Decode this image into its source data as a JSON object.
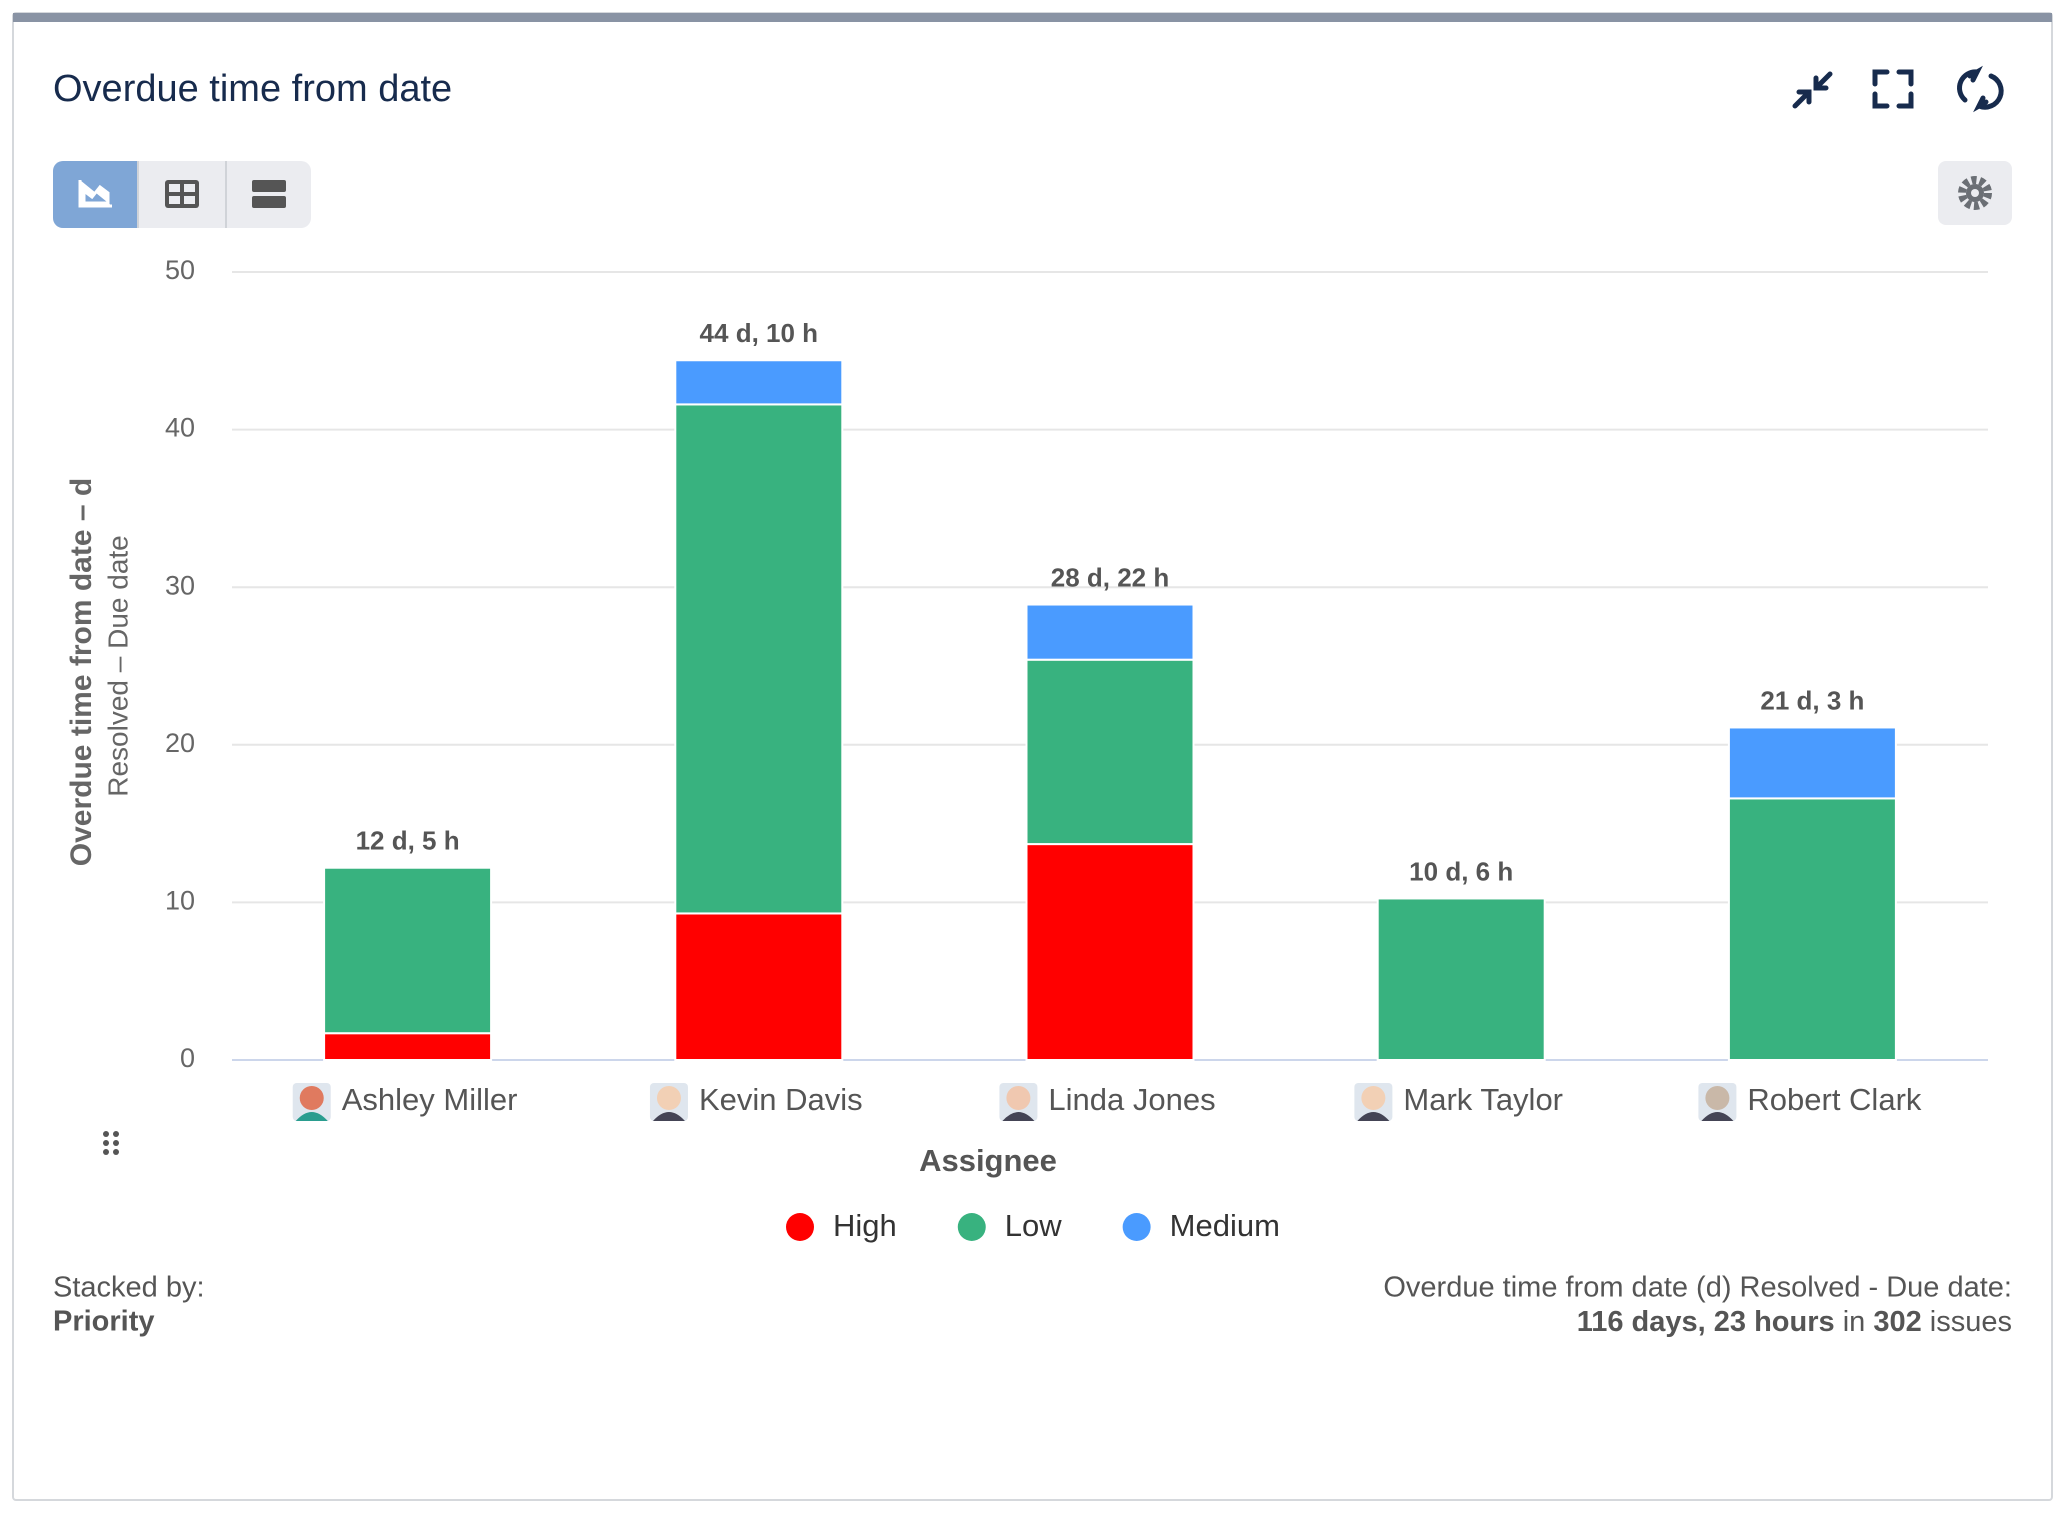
{
  "header": {
    "title": "Overdue time from date"
  },
  "chart_data": {
    "type": "stacked-bar",
    "y_axis_title": "Overdue time from date – d",
    "y_axis_subtitle": "Resolved – Due date",
    "x_axis_title": "Assignee",
    "categories": [
      "Ashley Miller",
      "Kevin Davis",
      "Linda Jones",
      "Mark Taylor",
      "Robert Clark"
    ],
    "series": [
      {
        "name": "High",
        "color": "#ff0000",
        "values": [
          1.7,
          9.3,
          13.7,
          0,
          0
        ]
      },
      {
        "name": "Low",
        "color": "#38b27f",
        "values": [
          10.5,
          32.3,
          11.7,
          10.25,
          16.6
        ]
      },
      {
        "name": "Medium",
        "color": "#4a9bff",
        "values": [
          0,
          2.8,
          3.5,
          0,
          4.5
        ]
      }
    ],
    "total_labels": [
      "12 d, 5 h",
      "44 d, 10 h",
      "28 d, 22 h",
      "10 d, 6 h",
      "21 d, 3 h"
    ],
    "ylim": [
      0,
      50
    ],
    "yticks": [
      0,
      10,
      20,
      30,
      40,
      50
    ],
    "grid": true
  },
  "footer": {
    "stacked_by_label": "Stacked by:",
    "stacked_by": "Priority",
    "summary_label": "Overdue time from date (d) Resolved - Due date:",
    "summary_total": "116 days, 23 hours",
    "summary_in": "in",
    "summary_count": "302",
    "summary_unit": "issues"
  }
}
